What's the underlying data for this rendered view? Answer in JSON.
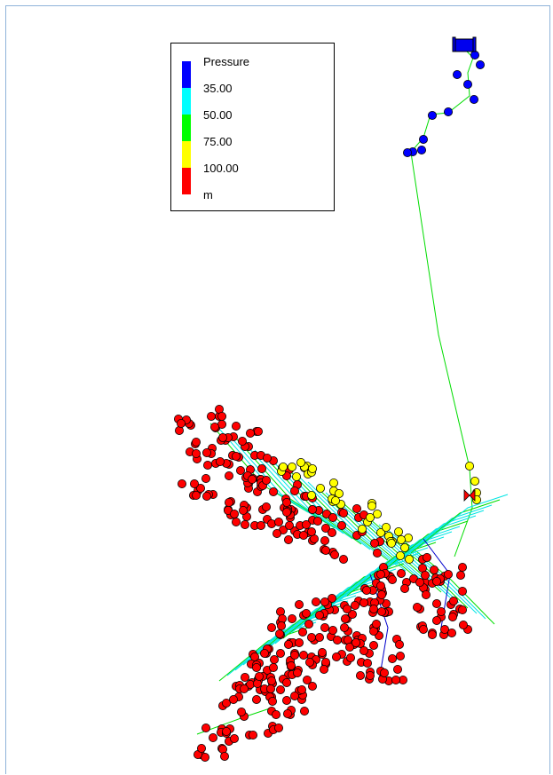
{
  "legend": {
    "title": "Pressure",
    "breaks": [
      "35.00",
      "50.00",
      "75.00",
      "100.00"
    ],
    "unit": "m",
    "colors": [
      "#0000ff",
      "#00ffff",
      "#00ff00",
      "#ffff00",
      "#ff0000"
    ]
  },
  "link_colors": {
    "cyan": "#00e5e5",
    "green": "#00dd00",
    "blue": "#0000cc"
  },
  "node_outline": "#000000",
  "icons": [
    "reservoir-icon",
    "valve-icon"
  ]
}
